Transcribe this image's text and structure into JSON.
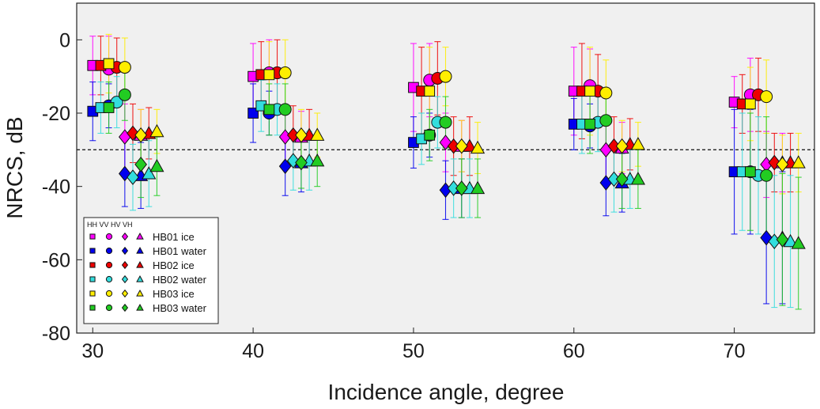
{
  "chart_data": {
    "type": "scatter",
    "xlabel": "Incidence angle, degree",
    "ylabel": "NRCS, dB",
    "xlim": [
      29,
      75
    ],
    "ylim": [
      -80,
      10
    ],
    "xticks": [
      30,
      40,
      50,
      60,
      70
    ],
    "yticks": [
      0,
      -20,
      -40,
      -60,
      -80
    ],
    "xtick_labels": [
      "30",
      "40",
      "50",
      "60",
      "70"
    ],
    "ytick_labels": [
      "0",
      "-20",
      "-40",
      "-60",
      "-80"
    ],
    "grid": false,
    "reference_line": {
      "y": -30,
      "style": "dashed"
    },
    "legend": {
      "location": "lower-left",
      "header": "HH VV HV VH",
      "markers": [
        "square",
        "circle",
        "diamond",
        "triangle"
      ]
    },
    "polarizations": [
      "HH",
      "VV",
      "HV",
      "VH"
    ],
    "series": [
      {
        "name": "HB01 ice",
        "color": "#ff00ff",
        "points": {
          "HH": [
            [
              30,
              -7,
              8
            ],
            [
              40,
              -10,
              9
            ],
            [
              50,
              -13,
              12
            ],
            [
              60,
              -14,
              12
            ],
            [
              70,
              -17,
              7
            ]
          ],
          "VV": [
            [
              31,
              -8,
              9
            ],
            [
              41,
              -9,
              9
            ],
            [
              51,
              -11,
              10
            ],
            [
              61,
              -12.5,
              10
            ],
            [
              71,
              -15,
              10
            ]
          ],
          "HV": [
            [
              32,
              -26.5,
              9
            ],
            [
              42,
              -26.5,
              8
            ],
            [
              52,
              -28,
              8
            ],
            [
              62,
              -30,
              8
            ],
            [
              72,
              -34,
              9
            ]
          ],
          "VH": [
            [
              33,
              -26,
              7
            ],
            [
              43,
              -26.5,
              7
            ],
            [
              53,
              -29,
              7
            ],
            [
              63,
              -29.5,
              7
            ],
            [
              73,
              -33.5,
              8
            ]
          ]
        }
      },
      {
        "name": "HB01 water",
        "color": "#0000ee",
        "points": {
          "HH": [
            [
              30,
              -19.5,
              8
            ],
            [
              40,
              -20,
              8
            ],
            [
              50,
              -28,
              7
            ],
            [
              60,
              -23,
              7
            ],
            [
              70,
              -36,
              17
            ]
          ],
          "VV": [
            [
              31,
              -18,
              6
            ],
            [
              41,
              -20,
              6
            ],
            [
              51,
              -26,
              6
            ],
            [
              61,
              -23.5,
              6
            ],
            [
              71,
              -36,
              17
            ]
          ],
          "HV": [
            [
              32,
              -36.5,
              9
            ],
            [
              42,
              -34.5,
              8
            ],
            [
              52,
              -41,
              8
            ],
            [
              62,
              -39,
              9
            ],
            [
              72,
              -54,
              18
            ]
          ],
          "VH": [
            [
              33,
              -37,
              9
            ],
            [
              43,
              -33.5,
              8
            ],
            [
              53,
              -40.5,
              8
            ],
            [
              63,
              -39,
              8
            ],
            [
              73,
              -54,
              18
            ]
          ]
        }
      },
      {
        "name": "HB02 ice",
        "color": "#ee0000",
        "points": {
          "HH": [
            [
              30.5,
              -7,
              8
            ],
            [
              40.5,
              -9.5,
              9
            ],
            [
              50.5,
              -14,
              12
            ],
            [
              60.5,
              -14,
              13
            ],
            [
              70.5,
              -17.5,
              8
            ]
          ],
          "VV": [
            [
              31.5,
              -7.5,
              8
            ],
            [
              41.5,
              -9,
              9
            ],
            [
              51.5,
              -10.5,
              10
            ],
            [
              61.5,
              -14,
              10
            ],
            [
              71.5,
              -15,
              10
            ]
          ],
          "HV": [
            [
              32.5,
              -25.5,
              8
            ],
            [
              42.5,
              -26,
              8
            ],
            [
              52.5,
              -29,
              8
            ],
            [
              62.5,
              -29,
              8
            ],
            [
              72.5,
              -33.5,
              8
            ]
          ],
          "VH": [
            [
              33.5,
              -25.5,
              7
            ],
            [
              43.5,
              -26,
              7
            ],
            [
              53.5,
              -29,
              8
            ],
            [
              63.5,
              -28.5,
              7
            ],
            [
              73.5,
              -33.5,
              8
            ]
          ]
        }
      },
      {
        "name": "HB02 water",
        "color": "#33dddd",
        "points": {
          "HH": [
            [
              30.5,
              -18.5,
              7
            ],
            [
              40.5,
              -18,
              7
            ],
            [
              50.5,
              -27,
              7
            ],
            [
              60.5,
              -23,
              8
            ],
            [
              70.5,
              -36,
              16
            ]
          ],
          "VV": [
            [
              31.5,
              -17,
              7
            ],
            [
              41.5,
              -19,
              7
            ],
            [
              51.5,
              -22.5,
              7
            ],
            [
              61.5,
              -22.5,
              8
            ],
            [
              71.5,
              -37,
              16
            ]
          ],
          "HV": [
            [
              32.5,
              -37.5,
              9
            ],
            [
              42.5,
              -33,
              8
            ],
            [
              52.5,
              -40.5,
              8
            ],
            [
              62.5,
              -38,
              9
            ],
            [
              72.5,
              -55,
              18
            ]
          ],
          "VH": [
            [
              33.5,
              -36.5,
              9
            ],
            [
              43.5,
              -33,
              8
            ],
            [
              53.5,
              -40.5,
              8
            ],
            [
              63.5,
              -38,
              8
            ],
            [
              73.5,
              -55,
              18
            ]
          ]
        }
      },
      {
        "name": "HB03 ice",
        "color": "#ffee00",
        "points": {
          "HH": [
            [
              31,
              -6.5,
              8
            ],
            [
              41,
              -9.5,
              9
            ],
            [
              51,
              -14,
              12
            ],
            [
              61,
              -14,
              12
            ],
            [
              71,
              -17.5,
              10
            ]
          ],
          "VV": [
            [
              32,
              -7.5,
              8
            ],
            [
              42,
              -9,
              9
            ],
            [
              52,
              -10,
              8
            ],
            [
              62,
              -14.5,
              9
            ],
            [
              72,
              -15.5,
              10
            ]
          ],
          "HV": [
            [
              33,
              -26,
              7
            ],
            [
              43,
              -26,
              7
            ],
            [
              53,
              -29,
              7
            ],
            [
              63,
              -29,
              7
            ],
            [
              73,
              -34,
              8
            ]
          ],
          "VH": [
            [
              34,
              -25,
              6
            ],
            [
              44,
              -26,
              6
            ],
            [
              54,
              -29.5,
              7
            ],
            [
              64,
              -28.5,
              6
            ],
            [
              74,
              -33.5,
              8
            ]
          ]
        }
      },
      {
        "name": "HB03 water",
        "color": "#22cc22",
        "points": {
          "HH": [
            [
              31,
              -18.5,
              7
            ],
            [
              41,
              -19,
              7
            ],
            [
              51,
              -26,
              7
            ],
            [
              61,
              -23,
              8
            ],
            [
              71,
              -36,
              16
            ]
          ],
          "VV": [
            [
              32,
              -15,
              7
            ],
            [
              42,
              -19,
              7
            ],
            [
              52,
              -22.5,
              7
            ],
            [
              62,
              -22,
              7
            ],
            [
              72,
              -37,
              16
            ]
          ],
          "HV": [
            [
              33,
              -34,
              9
            ],
            [
              43,
              -33.5,
              7
            ],
            [
              53,
              -40.5,
              8
            ],
            [
              63,
              -38,
              8
            ],
            [
              73,
              -54.5,
              18
            ]
          ],
          "VH": [
            [
              34,
              -34.5,
              8
            ],
            [
              44,
              -33,
              7
            ],
            [
              54,
              -40.5,
              8
            ],
            [
              64,
              -38,
              8
            ],
            [
              74,
              -55.5,
              18
            ]
          ]
        }
      }
    ]
  }
}
